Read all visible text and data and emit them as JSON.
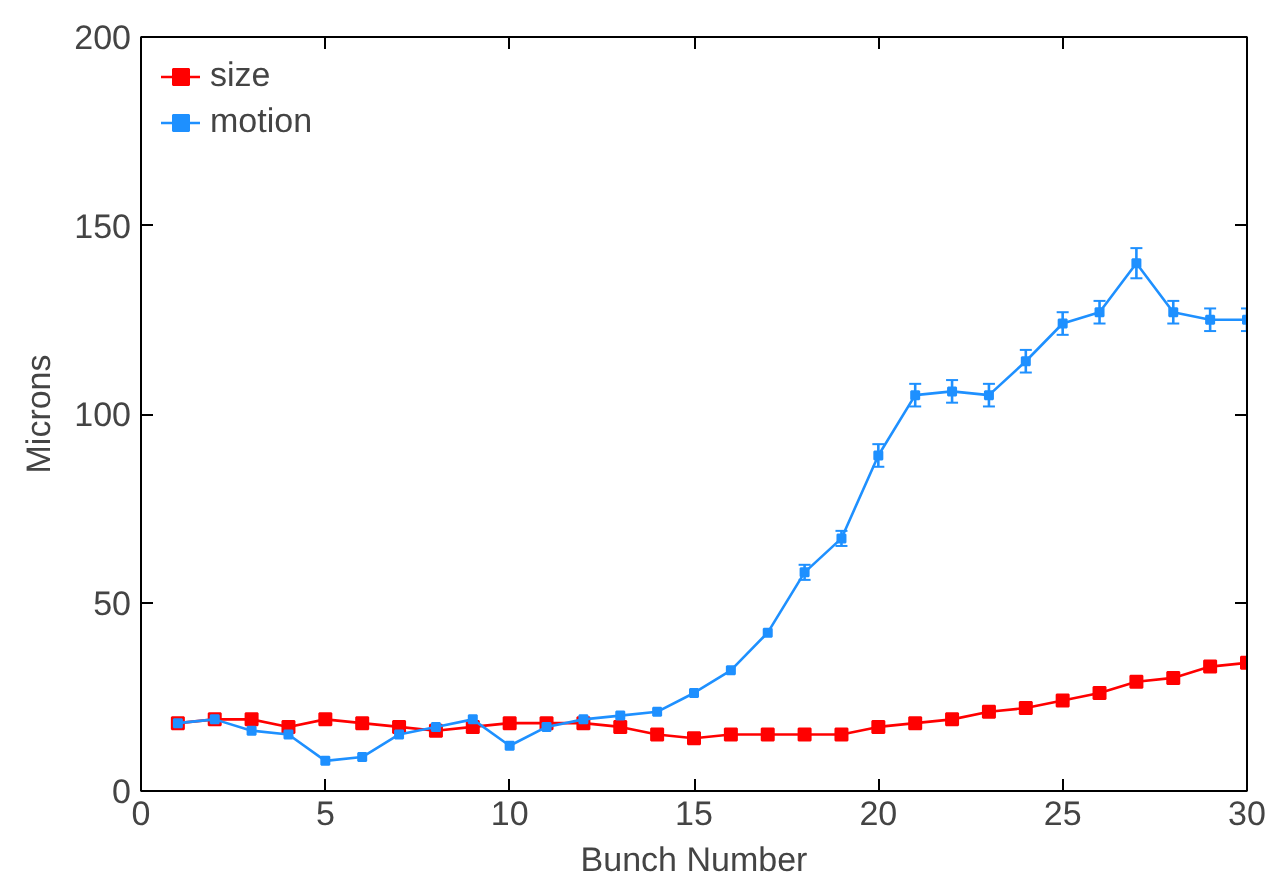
{
  "chart_data": {
    "type": "line",
    "xlabel": "Bunch Number",
    "ylabel": "Microns",
    "x": [
      1,
      2,
      3,
      4,
      5,
      6,
      7,
      8,
      9,
      10,
      11,
      12,
      13,
      14,
      15,
      16,
      17,
      18,
      19,
      20,
      21,
      22,
      23,
      24,
      25,
      26,
      27,
      28,
      29,
      30
    ],
    "series": [
      {
        "name": "size",
        "color": "#ff0000",
        "values": [
          18,
          19,
          19,
          17,
          19,
          18,
          17,
          16,
          17,
          18,
          18,
          18,
          17,
          15,
          14,
          15,
          15,
          15,
          15,
          17,
          18,
          19,
          21,
          22,
          24,
          26,
          29,
          30,
          33,
          34
        ]
      },
      {
        "name": "motion",
        "color": "#1e90ff",
        "values": [
          18,
          19,
          16,
          15,
          8,
          9,
          15,
          17,
          19,
          12,
          17,
          19,
          20,
          21,
          26,
          32,
          42,
          58,
          67,
          89,
          105,
          106,
          105,
          114,
          124,
          127,
          140,
          127,
          125,
          125
        ],
        "errors": [
          null,
          null,
          null,
          null,
          null,
          null,
          null,
          null,
          null,
          null,
          null,
          null,
          null,
          null,
          null,
          null,
          null,
          2,
          2,
          3,
          3,
          3,
          3,
          3,
          3,
          3,
          4,
          3,
          3,
          3
        ]
      }
    ],
    "xlim": [
      0,
      30
    ],
    "ylim": [
      0,
      200
    ],
    "xticks": [
      0,
      5,
      10,
      15,
      20,
      25,
      30
    ],
    "yticks": [
      0,
      50,
      100,
      150,
      200
    ],
    "grid": false,
    "legend": "top left",
    "marker": "square",
    "line_style": "solid"
  }
}
